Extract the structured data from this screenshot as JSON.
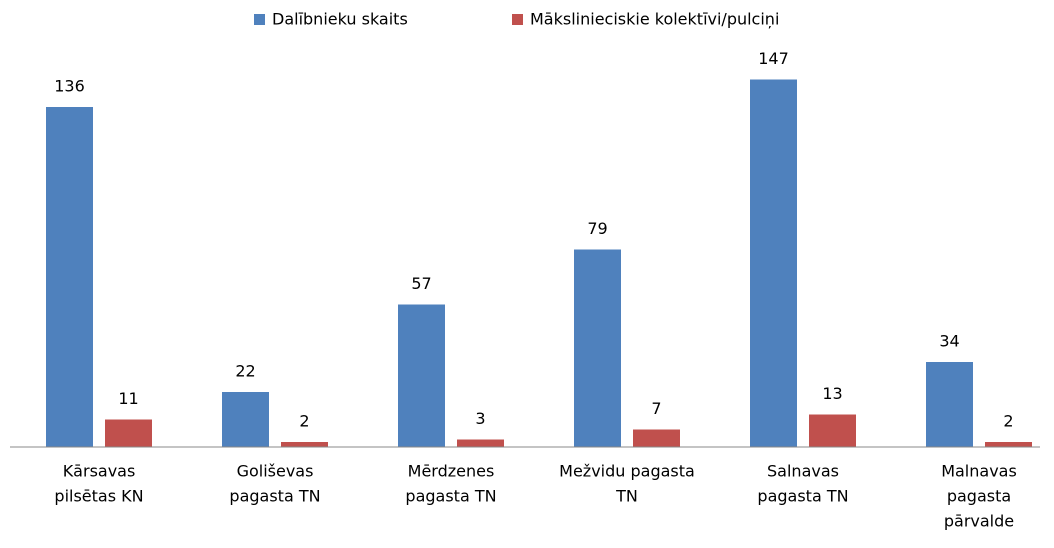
{
  "chart_data": {
    "type": "bar",
    "categories": [
      [
        "Kārsavas",
        "pilsētas KN"
      ],
      [
        "Goliševas",
        "pagasta TN"
      ],
      [
        "Mērdzenes",
        "pagasta TN"
      ],
      [
        "Mežvidu pagasta",
        "TN"
      ],
      [
        "Salnavas",
        "pagasta TN"
      ],
      [
        "Malnavas",
        "pagasta",
        "pārvalde"
      ]
    ],
    "series": [
      {
        "name": "Dalībnieku skaits",
        "color": "#4f81bd",
        "values": [
          136,
          22,
          57,
          79,
          147,
          34
        ]
      },
      {
        "name": "Mākslinieciskie kolektīvi/pulciņi",
        "color": "#c0504d",
        "values": [
          11,
          2,
          3,
          7,
          13,
          2
        ]
      }
    ],
    "ylim": [
      0,
      160
    ],
    "legend": "top"
  }
}
